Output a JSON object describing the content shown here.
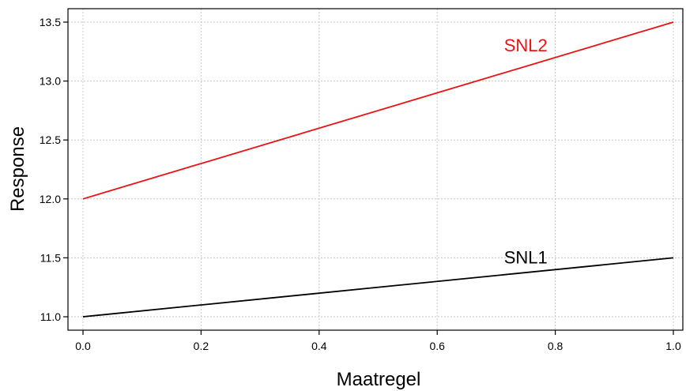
{
  "chart_data": {
    "type": "line",
    "title": "",
    "xlabel": "Maatregel",
    "ylabel": "Response",
    "xlim": [
      0.0,
      1.0
    ],
    "ylim": [
      10.9,
      13.6
    ],
    "x_ticks": [
      "0.0",
      "0.2",
      "0.4",
      "0.6",
      "0.8",
      "1.0"
    ],
    "y_ticks": [
      "11.0",
      "11.5",
      "12.0",
      "12.5",
      "13.0",
      "13.5"
    ],
    "grid": true,
    "legend": "none",
    "series": [
      {
        "name": "SNL1",
        "color": "#000000",
        "x": [
          0.0,
          1.0
        ],
        "y": [
          11.0,
          11.5
        ],
        "label_at": [
          0.75,
          11.5
        ]
      },
      {
        "name": "SNL2",
        "color": "#ee1111",
        "x": [
          0.0,
          1.0
        ],
        "y": [
          12.0,
          13.5
        ],
        "label_at": [
          0.75,
          13.3
        ]
      }
    ]
  }
}
